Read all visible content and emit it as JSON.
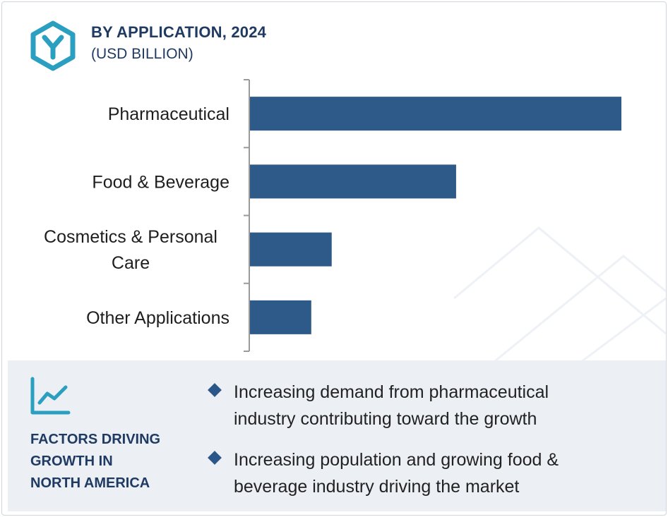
{
  "header": {
    "title": "BY APPLICATION, 2024",
    "subtitle": "(USD BILLION)"
  },
  "chart_data": {
    "type": "bar",
    "orientation": "horizontal",
    "title": "BY APPLICATION, 2024",
    "subtitle": "(USD BILLION)",
    "categories": [
      [
        "Pharmaceutical"
      ],
      [
        "Food & Beverage"
      ],
      [
        "Cosmetics & Personal",
        "Care"
      ],
      [
        "Other Applications"
      ]
    ],
    "values": [
      100,
      55.5,
      22,
      16.5
    ],
    "value_axis_visible": false,
    "grid": false,
    "legend": "none",
    "bar_color": "#2d5a88"
  },
  "factors": {
    "title_lines": [
      "FACTORS DRIVING",
      "GROWTH IN",
      "NORTH AMERICA"
    ],
    "bullets": [
      {
        "lines": [
          "Increasing demand from pharmaceutical",
          "industry contributing toward the growth"
        ]
      },
      {
        "lines": [
          "Increasing population and growing food &",
          "beverage industry driving the market"
        ]
      }
    ]
  },
  "colors": {
    "accent": "#2a9fbf",
    "navy": "#1f3a63",
    "bar": "#2d5a88",
    "panel_bg": "#eceff4"
  },
  "icons": {
    "logo": "hexagon-y-logo-icon",
    "factors": "trend-line-chart-icon",
    "bullet": "diamond-bullet-icon"
  }
}
